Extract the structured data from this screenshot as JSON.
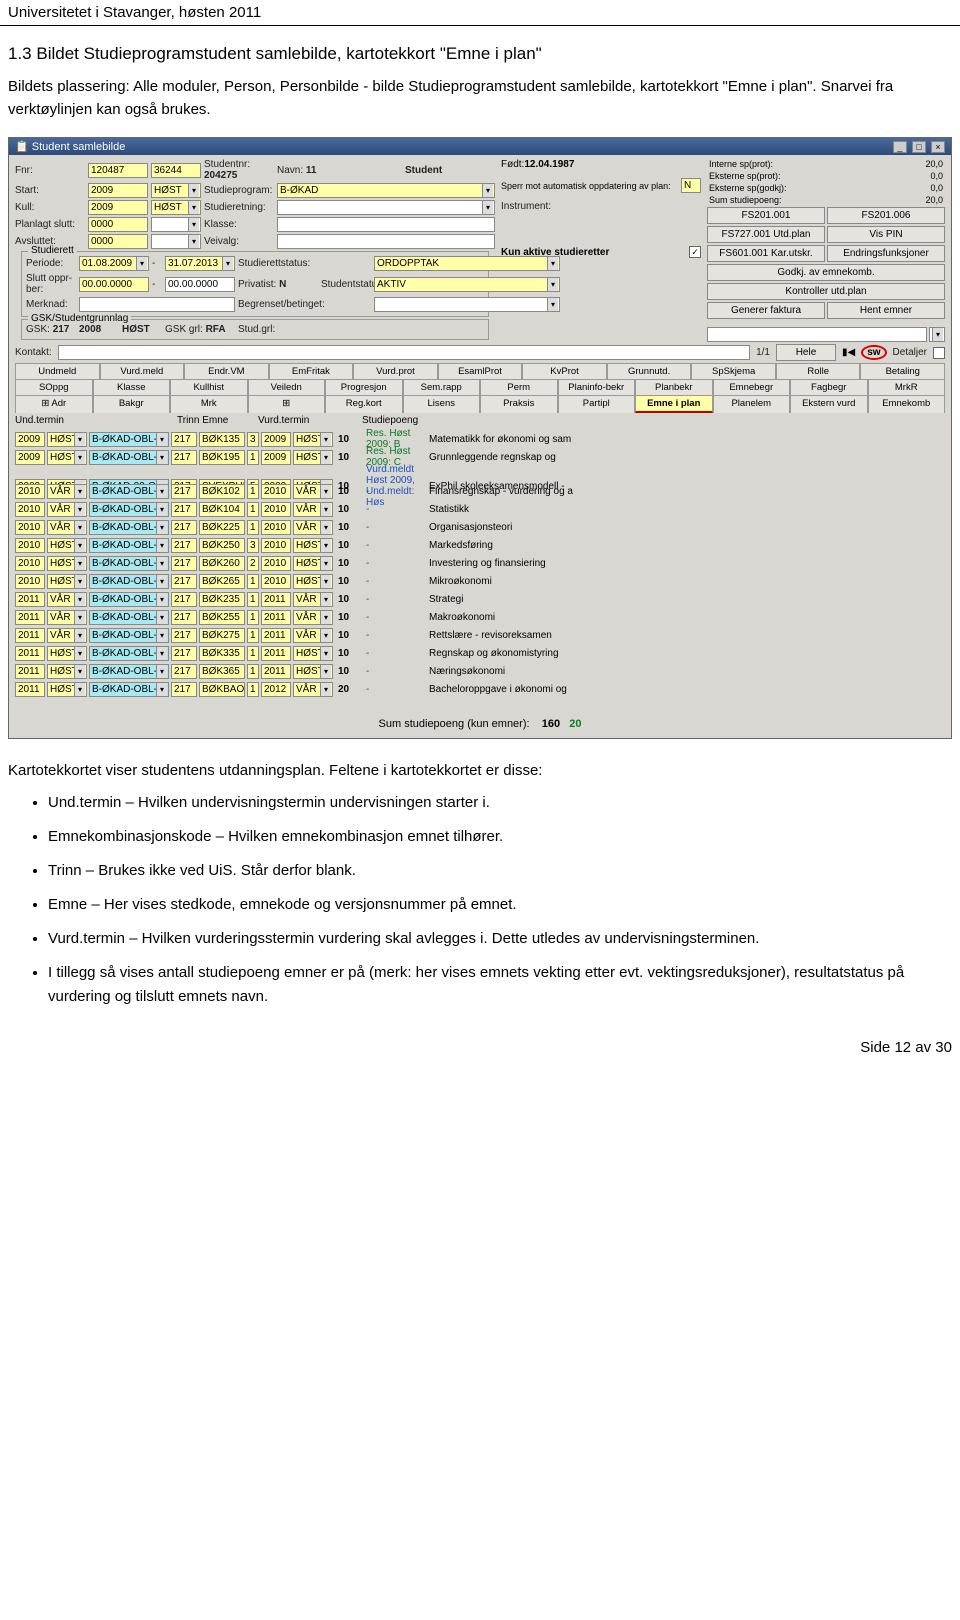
{
  "page_header": "Universitetet i Stavanger, høsten 2011",
  "section_title": "1.3 Bildet Studieprogramstudent samlebilde, kartotekkort \"Emne i plan\"",
  "intro_text": "Bildets plassering: Alle moduler, Person, Personbilde - bilde Studieprogramstudent samlebilde, kartotekkort \"Emne i plan\". Snarvei fra verktøylinjen kan også brukes.",
  "window": {
    "title": "Student samlebilde",
    "fnr_lbl": "Fnr:",
    "fnr1": "120487",
    "fnr2": "36244",
    "studentnr_lbl": "Studentnr:",
    "studentnr": "204275",
    "navn_lbl": "Navn:",
    "navn": "11",
    "student_lbl": "Student",
    "fodt_lbl": "Født:",
    "fodt": "12.04.1987",
    "start_lbl": "Start:",
    "start_y": "2009",
    "start_t": "HØST",
    "studieprogram_lbl": "Studieprogram:",
    "studieprogram": "B-ØKAD",
    "sperr_lbl": "Sperr mot automatisk oppdatering av plan:",
    "sperr_val": "N",
    "kull_lbl": "Kull:",
    "kull_y": "2009",
    "kull_t": "HØST",
    "studieretning_lbl": "Studieretning:",
    "planlagt_lbl": "Planlagt slutt:",
    "planlagt": "0000",
    "klasse_lbl": "Klasse:",
    "instrument_lbl": "Instrument:",
    "avsluttet_lbl": "Avsluttet:",
    "avsluttet": "0000",
    "veivalg_lbl": "Veivalg:",
    "studierett_legend": "Studierett",
    "periode_lbl": "Periode:",
    "periode_from": "01.08.2009",
    "periode_to": "31.07.2013",
    "studierettstatus_lbl": "Studierettstatus:",
    "studierettstatus": "ORDOPPTAK",
    "slutt_lbl": "Slutt oppr-ber:",
    "slutt_from": "00.00.0000",
    "slutt_to": "00.00.0000",
    "privatist_lbl": "Privatist:",
    "privatist": "N",
    "studentstatus_lbl": "Studentstatus:",
    "studentstatus": "AKTIV",
    "merknad_lbl": "Merknad:",
    "begrenset_lbl": "Begrenset/betinget:",
    "gsk_legend": "GSK/Studentgrunnlag",
    "gsk_lbl": "GSK:",
    "gsk_v": "217",
    "gsk_y": "2008",
    "gsk_t": "HØST",
    "gsk_grl_lbl": "GSK grl:",
    "gsk_grl": "RFA",
    "stud_grl_lbl": "Stud.grl:",
    "kontakt_lbl": "Kontakt:",
    "kun_aktive_lbl": "Kun aktive studieretter",
    "stats": {
      "r1l": "Interne sp(prot):",
      "r1v": "20,0",
      "r2l": "Eksterne sp(prot):",
      "r2v": "0,0",
      "r3l": "Eksterne sp(godkj):",
      "r3v": "0,0",
      "r4l": "Sum studiepoeng:",
      "r4v": "20,0"
    },
    "btns": {
      "fs201_001": "FS201.001",
      "fs201_006": "FS201.006",
      "fs727": "FS727.001 Utd.plan",
      "vispin": "Vis PIN",
      "fs601": "FS601.001 Kar.utskr.",
      "endr": "Endringsfunksjoner",
      "godkj": "Godkj. av emnekomb.",
      "kontroller": "Kontroller utd.plan",
      "generer": "Generer faktura",
      "hent": "Hent emner",
      "hele": "Hele",
      "sw": "sw",
      "detaljer_lbl": "Detaljer"
    },
    "counter": "1/1",
    "tabs_row1": [
      "Undmeld",
      "Vurd.meld",
      "Endr.VM",
      "EmFritak",
      "Vurd.prot",
      "EsamlProt",
      "KvProt",
      "Grunnutd.",
      "SpSkjema",
      "Rolle",
      "Betaling"
    ],
    "tabs_row2": [
      "SOppg",
      "Klasse",
      "Kullhist",
      "Veiledn",
      "Progresjon",
      "Sem.rapp",
      "Perm",
      "Planinfo-bekr",
      "Planbekr",
      "Emnebegr",
      "Fagbegr",
      "MrkR"
    ],
    "tabs_row3": [
      "⊞ Adr",
      "Bakgr",
      "Mrk",
      "⊞",
      "Reg.kort",
      "Lisens",
      "Praksis",
      "Partipl",
      "Emne i plan",
      "Planelem",
      "Ekstern vurd",
      "Emnekomb"
    ],
    "active_tab": "Emne i plan",
    "headers": {
      "und_termin": "Und.termin",
      "trinn_emne": "Trinn Emne",
      "vurd_termin": "Vurd.termin",
      "studiepoeng": "Studiepoeng"
    },
    "rows": [
      {
        "y": "2009",
        "t": "HØST",
        "kode": "B-ØKAD-OBL-(",
        "tr": "217",
        "emne": "BØK135",
        "n": "3",
        "vy": "2009",
        "vt": "HØST",
        "sp": "10",
        "res": "Res. Høst 2009: B",
        "rc": "g",
        "desc": "Matematikk for økonomi og sam"
      },
      {
        "y": "2009",
        "t": "HØST",
        "kode": "B-ØKAD-OBL-(",
        "tr": "217",
        "emne": "BØK195",
        "n": "1",
        "vy": "2009",
        "vt": "HØST",
        "sp": "10",
        "res": "Res. Høst 2009: C",
        "rc": "g",
        "desc": "Grunnleggende regnskap og"
      },
      {
        "y": "2009",
        "t": "HØST",
        "kode": "B-ØKAD-09-OE",
        "tr": "217",
        "emne": "SVEXPHIL",
        "n": "5",
        "vy": "2009",
        "vt": "HØST",
        "sp": "10",
        "res": "Vurd.meldt Høst 2009, Und.meldt: Høs",
        "rc": "b",
        "desc": "ExPhil skoleeksamensmodell -"
      },
      {
        "y": "2010",
        "t": "VÅR",
        "kode": "B-ØKAD-OBL-(",
        "tr": "217",
        "emne": "BØK102",
        "n": "1",
        "vy": "2010",
        "vt": "VÅR",
        "sp": "10",
        "res": "-",
        "rc": "",
        "desc": "Finansregnskap - vurdering og a"
      },
      {
        "y": "2010",
        "t": "VÅR",
        "kode": "B-ØKAD-OBL-(",
        "tr": "217",
        "emne": "BØK104",
        "n": "1",
        "vy": "2010",
        "vt": "VÅR",
        "sp": "10",
        "res": "-",
        "rc": "",
        "desc": "Statistikk"
      },
      {
        "y": "2010",
        "t": "VÅR",
        "kode": "B-ØKAD-OBL-(",
        "tr": "217",
        "emne": "BØK225",
        "n": "1",
        "vy": "2010",
        "vt": "VÅR",
        "sp": "10",
        "res": "-",
        "rc": "",
        "desc": "Organisasjonsteori"
      },
      {
        "y": "2010",
        "t": "HØST",
        "kode": "B-ØKAD-OBL-(",
        "tr": "217",
        "emne": "BØK250",
        "n": "3",
        "vy": "2010",
        "vt": "HØST",
        "sp": "10",
        "res": "-",
        "rc": "",
        "desc": "Markedsføring"
      },
      {
        "y": "2010",
        "t": "HØST",
        "kode": "B-ØKAD-OBL-(",
        "tr": "217",
        "emne": "BØK260",
        "n": "2",
        "vy": "2010",
        "vt": "HØST",
        "sp": "10",
        "res": "-",
        "rc": "",
        "desc": "Investering og finansiering"
      },
      {
        "y": "2010",
        "t": "HØST",
        "kode": "B-ØKAD-OBL-(",
        "tr": "217",
        "emne": "BØK265",
        "n": "1",
        "vy": "2010",
        "vt": "HØST",
        "sp": "10",
        "res": "-",
        "rc": "",
        "desc": "Mikroøkonomi"
      },
      {
        "y": "2011",
        "t": "VÅR",
        "kode": "B-ØKAD-OBL-(",
        "tr": "217",
        "emne": "BØK235",
        "n": "1",
        "vy": "2011",
        "vt": "VÅR",
        "sp": "10",
        "res": "-",
        "rc": "",
        "desc": "Strategi"
      },
      {
        "y": "2011",
        "t": "VÅR",
        "kode": "B-ØKAD-OBL-(",
        "tr": "217",
        "emne": "BØK255",
        "n": "1",
        "vy": "2011",
        "vt": "VÅR",
        "sp": "10",
        "res": "-",
        "rc": "",
        "desc": "Makroøkonomi"
      },
      {
        "y": "2011",
        "t": "VÅR",
        "kode": "B-ØKAD-OBL-(",
        "tr": "217",
        "emne": "BØK275",
        "n": "1",
        "vy": "2011",
        "vt": "VÅR",
        "sp": "10",
        "res": "-",
        "rc": "",
        "desc": "Rettslære - revisoreksamen"
      },
      {
        "y": "2011",
        "t": "HØST",
        "kode": "B-ØKAD-OBL-(",
        "tr": "217",
        "emne": "BØK335",
        "n": "1",
        "vy": "2011",
        "vt": "HØST",
        "sp": "10",
        "res": "-",
        "rc": "",
        "desc": "Regnskap og økonomistyring"
      },
      {
        "y": "2011",
        "t": "HØST",
        "kode": "B-ØKAD-OBL-(",
        "tr": "217",
        "emne": "BØK365",
        "n": "1",
        "vy": "2011",
        "vt": "HØST",
        "sp": "10",
        "res": "-",
        "rc": "",
        "desc": "Næringsøkonomi"
      },
      {
        "y": "2011",
        "t": "HØST",
        "kode": "B-ØKAD-OBL-(",
        "tr": "217",
        "emne": "BØKBAO",
        "n": "1",
        "vy": "2012",
        "vt": "VÅR",
        "sp": "20",
        "res": "-",
        "rc": "",
        "desc": "Bacheloroppgave i økonomi og"
      }
    ],
    "sum_lbl": "Sum studiepoeng (kun emner):",
    "sum_v1": "160",
    "sum_v2": "20"
  },
  "post_para": "Kartotekkortet viser studentens utdanningsplan. Feltene i kartotekkortet er disse:",
  "bullets": [
    "Und.termin – Hvilken undervisningstermin undervisningen starter i.",
    "Emnekombinasjonskode – Hvilken emnekombinasjon emnet tilhører.",
    "Trinn – Brukes ikke ved UiS. Står derfor blank.",
    "Emne – Her vises stedkode, emnekode og versjonsnummer på emnet.",
    "Vurd.termin – Hvilken vurderingsstermin vurdering skal avlegges i. Dette utledes av undervisningsterminen.",
    "I tillegg så vises antall studiepoeng emner er på (merk: her vises emnets vekting etter evt. vektingsreduksjoner), resultatstatus på vurdering og tilslutt emnets navn."
  ],
  "footer": "Side 12 av 30"
}
